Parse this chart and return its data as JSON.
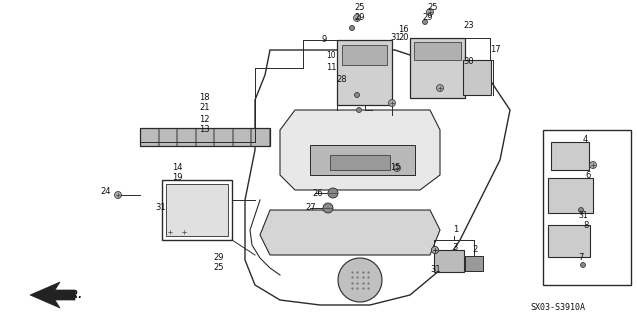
{
  "diagram_code": "SX03-S3910A",
  "bg_color": "#ffffff",
  "line_color": "#2a2a2a",
  "text_color": "#111111",
  "figsize": [
    6.37,
    3.2
  ],
  "dpi": 100
}
